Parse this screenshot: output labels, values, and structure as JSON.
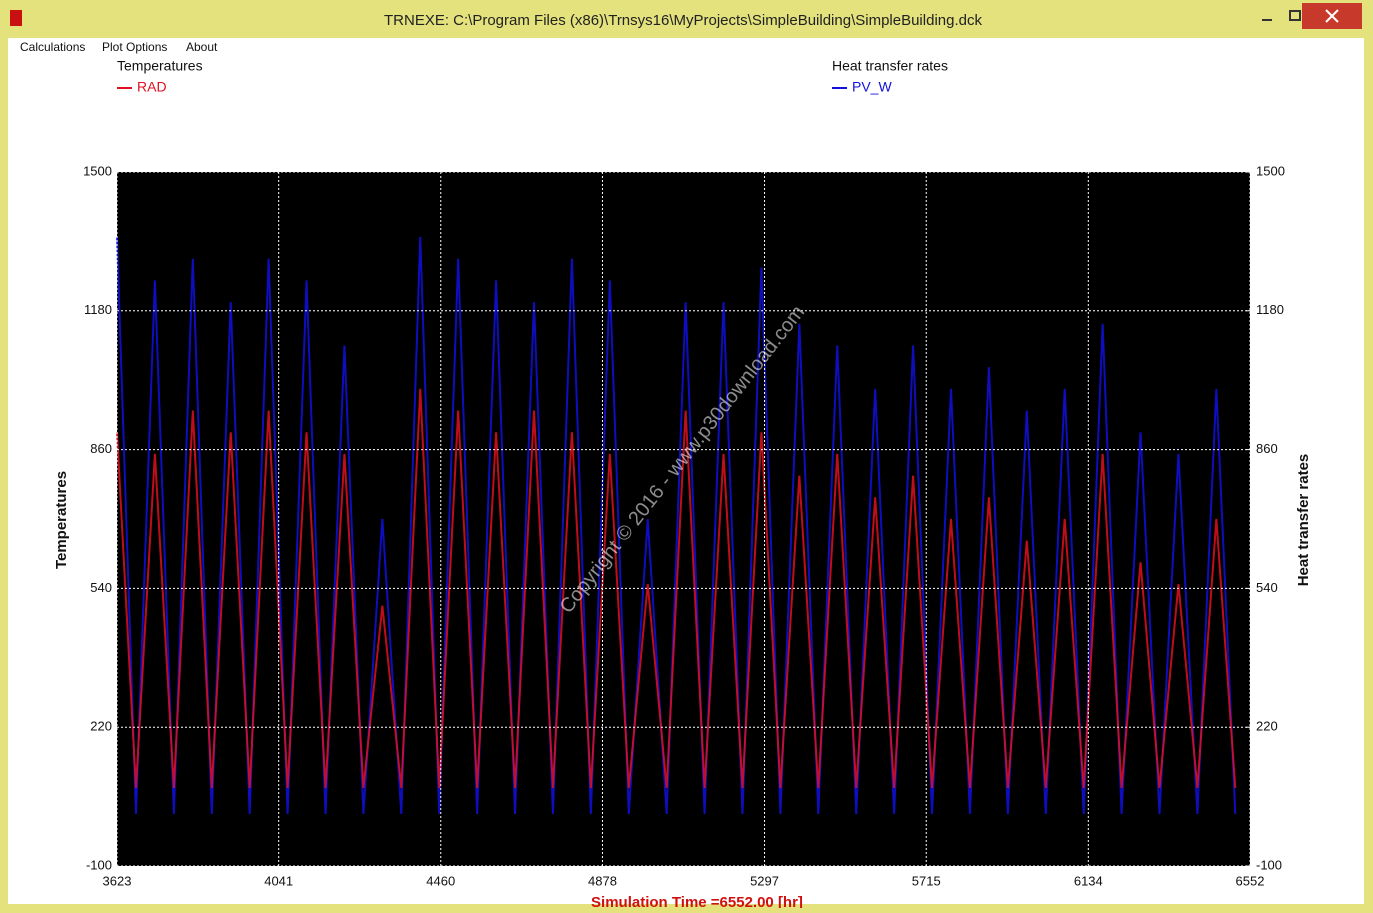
{
  "window": {
    "title": "TRNEXE: C:\\Program Files (x86)\\Trnsys16\\MyProjects\\SimpleBuilding\\SimpleBuilding.dck"
  },
  "menu": [
    "Calculations",
    "Plot Options",
    "About"
  ],
  "watermark": "Copyright © 2016 - www.p30download.com",
  "chart_data": {
    "type": "line",
    "ylabel": "Temperatures",
    "y2label": "Heat transfer rates",
    "xlabel": "Simulation Time =6552.00 [hr]",
    "xlim": [
      3623,
      6552
    ],
    "xticks": [
      3623,
      4041,
      4460,
      4878,
      5297,
      5715,
      6134,
      6552
    ],
    "ylim": [
      -100,
      1500
    ],
    "yticks": [
      -100,
      220,
      540,
      860,
      1180,
      1500
    ],
    "y2lim": [
      -100,
      1500
    ],
    "y2ticks": [
      -100,
      220,
      540,
      860,
      1180,
      1500
    ],
    "grid": true,
    "x": [
      3623,
      3672,
      3721,
      3770,
      3819,
      3868,
      3917,
      3966,
      4015,
      4064,
      4113,
      4162,
      4211,
      4260,
      4309,
      4358,
      4407,
      4456,
      4505,
      4554,
      4603,
      4652,
      4701,
      4750,
      4799,
      4848,
      4897,
      4946,
      4995,
      5044,
      5093,
      5142,
      5191,
      5240,
      5289,
      5338,
      5387,
      5436,
      5485,
      5534,
      5583,
      5632,
      5681,
      5730,
      5779,
      5828,
      5877,
      5926,
      5975,
      6024,
      6073,
      6122,
      6171,
      6220,
      6269,
      6318,
      6367,
      6416,
      6465,
      6514
    ],
    "series": [
      {
        "name": "PV_W",
        "color": "#1010e0",
        "axis": "y2",
        "values": [
          1350,
          20,
          1250,
          20,
          1300,
          20,
          1200,
          20,
          1300,
          20,
          1250,
          20,
          1100,
          20,
          700,
          20,
          1350,
          20,
          1300,
          20,
          1250,
          20,
          1200,
          20,
          1300,
          20,
          1250,
          20,
          700,
          20,
          1200,
          20,
          1200,
          20,
          1280,
          20,
          1150,
          20,
          1100,
          20,
          1000,
          20,
          1100,
          20,
          1000,
          20,
          1050,
          20,
          950,
          20,
          1000,
          20,
          1150,
          20,
          900,
          20,
          850,
          20,
          1000,
          20
        ]
      },
      {
        "name": "RAD",
        "color": "#e01020",
        "axis": "y",
        "values": [
          900,
          80,
          850,
          80,
          950,
          80,
          900,
          80,
          950,
          80,
          900,
          80,
          850,
          80,
          500,
          80,
          1000,
          80,
          950,
          80,
          900,
          80,
          950,
          80,
          900,
          80,
          850,
          80,
          550,
          80,
          950,
          80,
          850,
          80,
          900,
          80,
          800,
          80,
          850,
          80,
          750,
          80,
          800,
          80,
          700,
          80,
          750,
          80,
          650,
          80,
          700,
          80,
          850,
          80,
          600,
          80,
          550,
          80,
          700,
          80
        ]
      }
    ]
  }
}
